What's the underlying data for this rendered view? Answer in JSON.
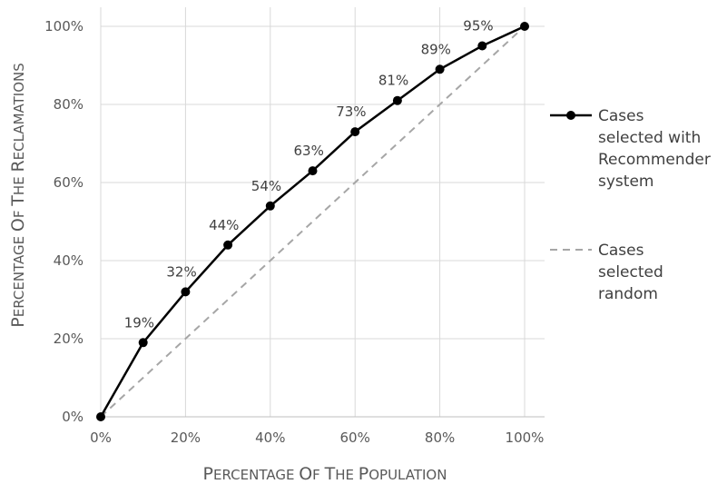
{
  "chart_data": {
    "type": "line",
    "xlabel": "Percentage of the population",
    "ylabel": "Percentage of the reclamations",
    "x": [
      0,
      10,
      20,
      30,
      40,
      50,
      60,
      70,
      80,
      90,
      100
    ],
    "x_tick_labels": [
      "0%",
      "20%",
      "40%",
      "60%",
      "80%",
      "100%"
    ],
    "y_tick_labels": [
      "0%",
      "20%",
      "40%",
      "60%",
      "80%",
      "100%"
    ],
    "xlim": [
      0,
      100
    ],
    "ylim": [
      0,
      100
    ],
    "grid": true,
    "legend_position": "right",
    "series": [
      {
        "name": "Cases selected with Recommender system",
        "legend_lines": [
          "Cases",
          "selected with",
          "Recommender",
          "system"
        ],
        "values": [
          0,
          19,
          32,
          44,
          54,
          63,
          73,
          81,
          89,
          95,
          100
        ],
        "data_labels": [
          "",
          "19%",
          "32%",
          "44%",
          "54%",
          "63%",
          "73%",
          "81%",
          "89%",
          "95%",
          ""
        ],
        "color": "#000000",
        "style": "solid",
        "markers": true
      },
      {
        "name": "Cases selected random",
        "legend_lines": [
          "Cases",
          "selected",
          "random"
        ],
        "x": [
          0,
          100
        ],
        "values": [
          0,
          100
        ],
        "color": "#a6a6a6",
        "style": "dashed",
        "markers": false
      }
    ]
  }
}
